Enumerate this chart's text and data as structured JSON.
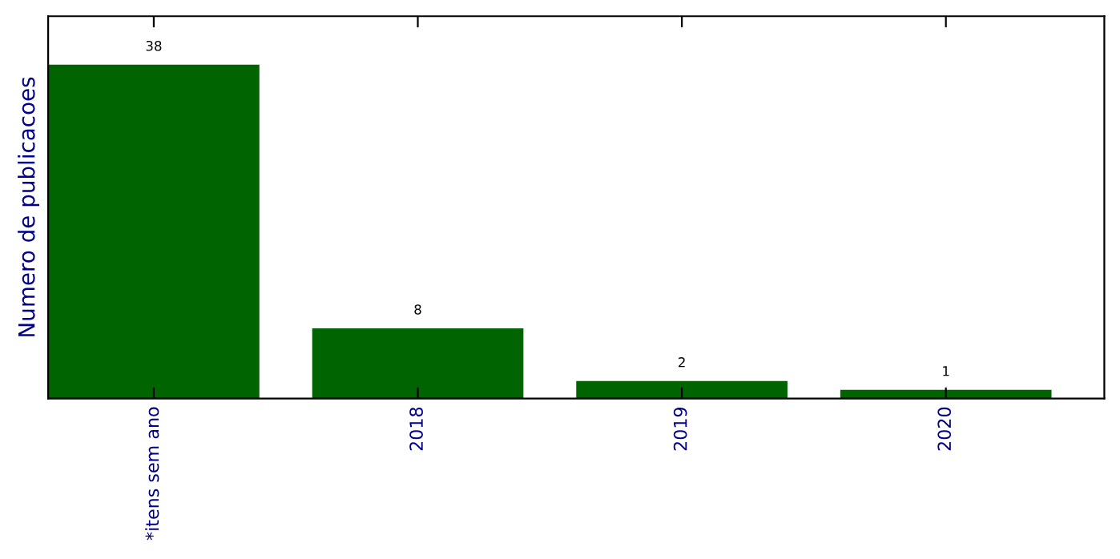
{
  "chart_data": {
    "type": "bar",
    "ylabel": "Numero de publicacoes",
    "categories": [
      "*itens sem ano",
      "2018",
      "2019",
      "2020"
    ],
    "values": [
      38,
      8,
      2,
      1
    ],
    "color": "#006400",
    "data_labels": true,
    "tick_labels": "x",
    "grid": false,
    "legend": false
  }
}
